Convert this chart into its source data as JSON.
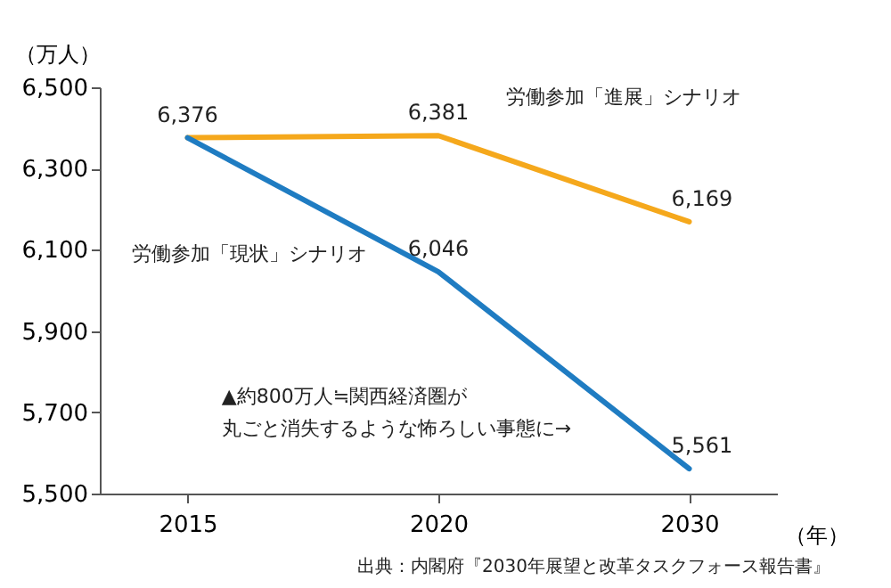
{
  "chart_data": {
    "type": "line",
    "xlabel": "（年）",
    "ylabel": "（万人）",
    "categories": [
      "2015",
      "2020",
      "2030"
    ],
    "series": [
      {
        "name": "労働参加「進展」シナリオ",
        "color": "#f5a81c",
        "values": [
          6376,
          6381,
          6169
        ],
        "value_labels": [
          "6,376",
          "6,381",
          "6,169"
        ]
      },
      {
        "name": "労働参加「現状」シナリオ",
        "color": "#1f7cc2",
        "values": [
          6376,
          6046,
          5561
        ],
        "value_labels": [
          null,
          "6,046",
          "5,561"
        ]
      }
    ],
    "ylim": [
      5500,
      6500
    ],
    "yticks": [
      {
        "value": 5500,
        "label": "5,500"
      },
      {
        "value": 5700,
        "label": "5,700"
      },
      {
        "value": 5900,
        "label": "5,900"
      },
      {
        "value": 6100,
        "label": "6,100"
      },
      {
        "value": 6300,
        "label": "6,300"
      },
      {
        "value": 6500,
        "label": "6,500"
      }
    ],
    "grid": false,
    "legend": false,
    "marker": "none",
    "line_style": "solid",
    "annotations": [
      "▲約800万人≒関西経済圏が",
      "丸ごと消失するような怖ろしい事態に→",
      "出典：内閣府『2030年展望と改革タスクフォース報告書』"
    ]
  }
}
